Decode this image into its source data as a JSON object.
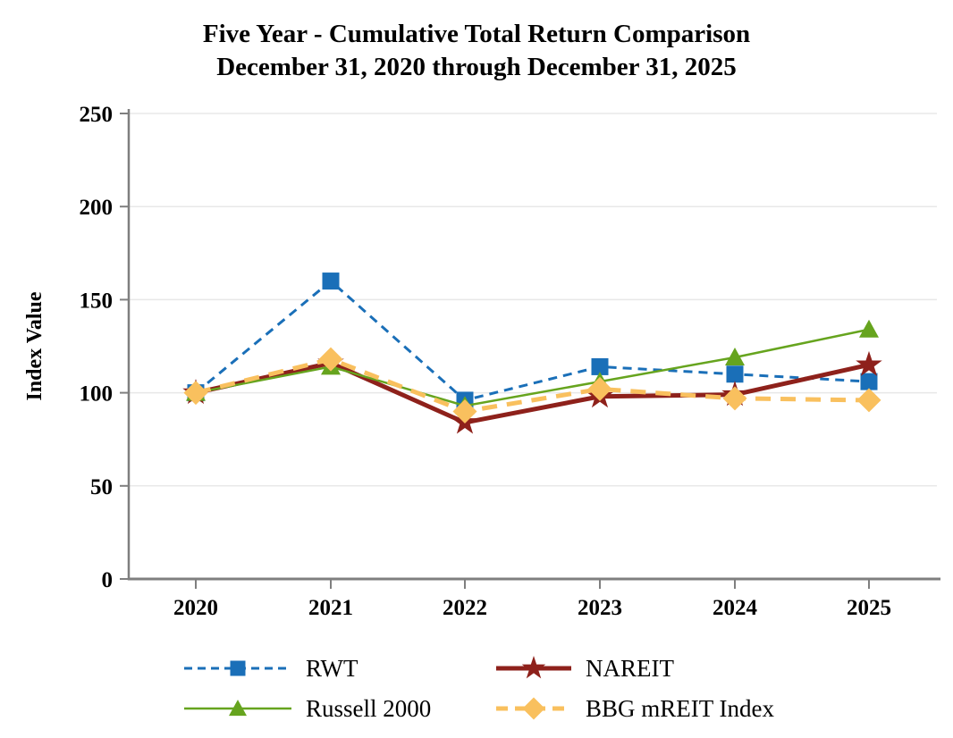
{
  "chart_data": {
    "type": "line",
    "title": "Five Year - Cumulative Total Return Comparison",
    "subtitle": "December 31, 2020 through December 31, 2025",
    "ylabel": "Index Value",
    "xlabel": "",
    "categories": [
      "2020",
      "2021",
      "2022",
      "2023",
      "2024",
      "2025"
    ],
    "ylim": [
      0,
      250
    ],
    "yticks": [
      0,
      50,
      100,
      150,
      200,
      250
    ],
    "grid": "horizontal-light",
    "legend_position": "bottom",
    "axis_color": "#7f7f7f",
    "gridline_color": "#e8e8e8",
    "text_color": "#000000",
    "series": [
      {
        "name": "RWT",
        "color": "#1a6fb8",
        "marker": "square",
        "line_style": "dashed",
        "line_width": 3,
        "values": [
          100,
          160,
          96,
          114,
          110,
          106
        ]
      },
      {
        "name": "NAREIT",
        "color": "#8e211b",
        "marker": "star",
        "line_style": "solid",
        "line_width": 5,
        "values": [
          100,
          116,
          84,
          98,
          99,
          115
        ]
      },
      {
        "name": "Russell 2000",
        "color": "#66a41e",
        "marker": "triangle",
        "line_style": "solid",
        "line_width": 2.5,
        "values": [
          100,
          114,
          93,
          106,
          119,
          134
        ]
      },
      {
        "name": "BBG mREIT Index",
        "color": "#f9c05e",
        "marker": "diamond",
        "line_style": "long-dashed",
        "line_width": 5,
        "values": [
          100,
          118,
          90,
          102,
          97,
          96
        ]
      }
    ]
  }
}
